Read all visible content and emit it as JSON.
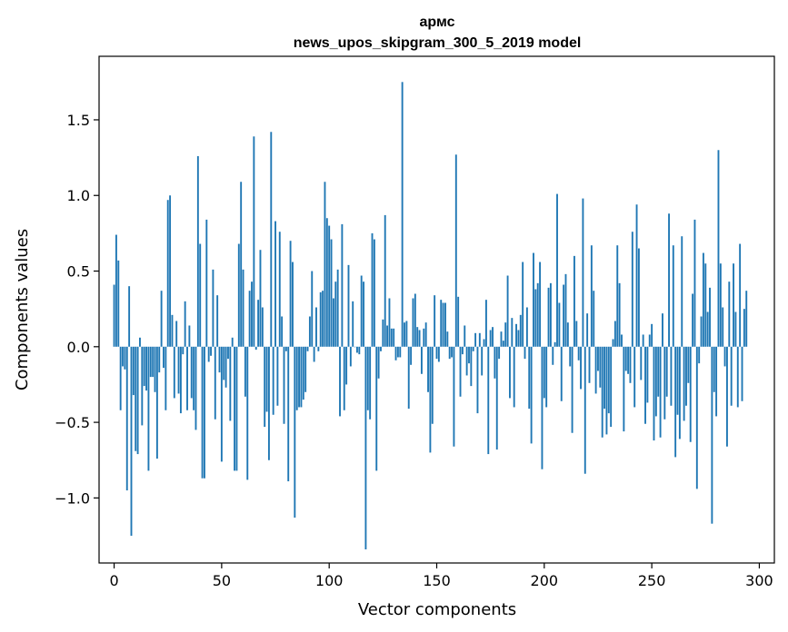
{
  "chart_data": {
    "type": "bar",
    "title": "армс",
    "subtitle": "news_upos_skipgram_300_5_2019 model",
    "xlabel": "Vector components",
    "ylabel": "Components values",
    "xlim": [
      -7,
      307
    ],
    "ylim": [
      -1.43,
      1.92
    ],
    "xticks": [
      0,
      50,
      100,
      150,
      200,
      250,
      300
    ],
    "xtick_labels": [
      "0",
      "50",
      "100",
      "150",
      "200",
      "250",
      "300"
    ],
    "yticks": [
      -1.0,
      -0.5,
      0.0,
      0.5,
      1.0,
      1.5
    ],
    "ytick_labels": [
      "−1.0",
      "−0.5",
      "0.0",
      "0.5",
      "1.0",
      "1.5"
    ],
    "grid": false,
    "bar_color": "#1f77b4",
    "series": [
      {
        "values": [
          0.41,
          0.74,
          0.57,
          -0.42,
          -0.13,
          -0.15,
          -0.95,
          0.4,
          -1.25,
          -0.32,
          -0.69,
          -0.71,
          0.06,
          -0.52,
          -0.26,
          -0.29,
          -0.82,
          -0.2,
          -0.2,
          -0.3,
          -0.74,
          -0.17,
          0.37,
          -0.14,
          -0.42,
          0.97,
          1.0,
          0.21,
          -0.34,
          0.17,
          -0.31,
          -0.44,
          -0.05,
          0.3,
          -0.42,
          0.14,
          -0.34,
          -0.42,
          -0.55,
          1.26,
          0.68,
          -0.87,
          -0.87,
          0.84,
          -0.1,
          -0.06,
          0.51,
          -0.48,
          0.34,
          -0.17,
          -0.76,
          -0.22,
          -0.27,
          -0.08,
          -0.49,
          0.06,
          -0.82,
          -0.82,
          0.68,
          1.09,
          0.51,
          -0.33,
          -0.88,
          0.37,
          0.43,
          1.39,
          -0.02,
          0.31,
          0.64,
          0.26,
          -0.53,
          -0.43,
          -0.75,
          1.42,
          -0.45,
          0.83,
          -0.39,
          0.76,
          0.2,
          -0.51,
          -0.03,
          -0.89,
          0.7,
          0.56,
          -1.13,
          -0.42,
          -0.4,
          -0.4,
          -0.35,
          -0.3,
          -0.03,
          0.2,
          0.5,
          -0.1,
          0.26,
          -0.03,
          0.36,
          0.37,
          1.09,
          0.85,
          0.8,
          0.71,
          0.32,
          0.43,
          0.51,
          -0.46,
          0.81,
          -0.42,
          -0.25,
          0.54,
          -0.13,
          0.3,
          0.0,
          -0.04,
          -0.05,
          0.47,
          0.43,
          -1.34,
          -0.42,
          -0.48,
          0.75,
          0.71,
          -0.82,
          -0.21,
          -0.03,
          0.18,
          0.87,
          0.14,
          0.32,
          0.12,
          0.12,
          -0.09,
          -0.07,
          -0.07,
          1.75,
          0.16,
          0.17,
          -0.41,
          -0.12,
          0.32,
          0.35,
          0.13,
          0.11,
          -0.18,
          0.12,
          0.16,
          -0.3,
          -0.7,
          -0.51,
          0.34,
          -0.08,
          -0.1,
          0.31,
          0.29,
          0.29,
          0.1,
          -0.08,
          -0.07,
          -0.66,
          1.27,
          0.33,
          -0.33,
          -0.05,
          0.14,
          -0.19,
          -0.11,
          -0.26,
          -0.03,
          0.09,
          -0.44,
          0.09,
          -0.19,
          0.05,
          0.31,
          -0.71,
          0.11,
          0.13,
          -0.21,
          -0.68,
          -0.08,
          0.1,
          0.04,
          0.16,
          0.47,
          -0.34,
          0.19,
          -0.4,
          0.15,
          0.11,
          0.21,
          0.56,
          -0.08,
          0.26,
          -0.41,
          -0.64,
          0.62,
          0.38,
          0.42,
          0.56,
          -0.81,
          -0.34,
          -0.4,
          0.39,
          0.42,
          -0.12,
          0.03,
          1.01,
          0.29,
          -0.36,
          0.41,
          0.48,
          0.16,
          -0.13,
          -0.57,
          0.6,
          0.17,
          -0.09,
          -0.28,
          0.98,
          -0.84,
          0.22,
          -0.24,
          0.67,
          0.37,
          -0.31,
          -0.16,
          -0.27,
          -0.6,
          -0.41,
          -0.58,
          -0.44,
          -0.53,
          0.05,
          0.17,
          0.67,
          0.42,
          0.08,
          -0.56,
          -0.16,
          -0.18,
          -0.24,
          0.76,
          -0.4,
          0.94,
          0.65,
          -0.22,
          0.08,
          -0.51,
          -0.37,
          0.08,
          0.15,
          -0.62,
          -0.46,
          -0.33,
          -0.6,
          0.22,
          -0.48,
          -0.33,
          0.88,
          -0.39,
          0.67,
          -0.73,
          -0.45,
          -0.61,
          0.73,
          -0.49,
          -0.39,
          -0.24,
          -0.63,
          0.35,
          0.84,
          -0.94,
          -0.11,
          0.2,
          0.62,
          0.55,
          0.23,
          0.39,
          -1.17,
          -0.3,
          -0.46,
          1.3,
          0.55,
          0.26,
          -0.13,
          -0.66,
          0.43,
          -0.39,
          0.55,
          0.23,
          -0.4,
          0.68,
          -0.36,
          0.25,
          0.37
        ]
      }
    ]
  }
}
